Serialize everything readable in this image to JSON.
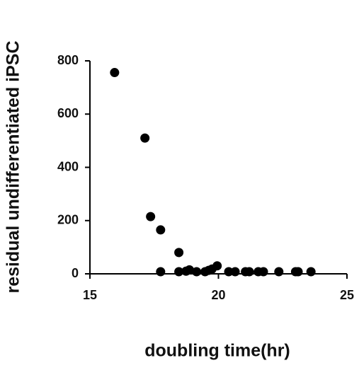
{
  "chart_data": {
    "type": "scatter",
    "xlabel": "doubling time(hr)",
    "ylabel": "residual undifferentiated iPSC",
    "color": "#000000",
    "xlim": [
      15,
      25
    ],
    "xticks": [
      15,
      20,
      25
    ],
    "ylim": [
      0,
      800
    ],
    "yticks": [
      0,
      200,
      400,
      600,
      800
    ],
    "x": [
      15.96,
      17.14,
      17.36,
      17.75,
      17.75,
      18.46,
      18.46,
      18.74,
      18.87,
      19.15,
      19.48,
      19.62,
      19.75,
      19.95,
      20.4,
      20.65,
      21.05,
      21.2,
      21.55,
      21.75,
      22.35,
      23.0,
      23.1,
      23.6
    ],
    "values": [
      756,
      510,
      215,
      165,
      8,
      80,
      8,
      10,
      15,
      8,
      8,
      13,
      18,
      30,
      8,
      8,
      8,
      8,
      8,
      8,
      8,
      8,
      8,
      8
    ]
  }
}
